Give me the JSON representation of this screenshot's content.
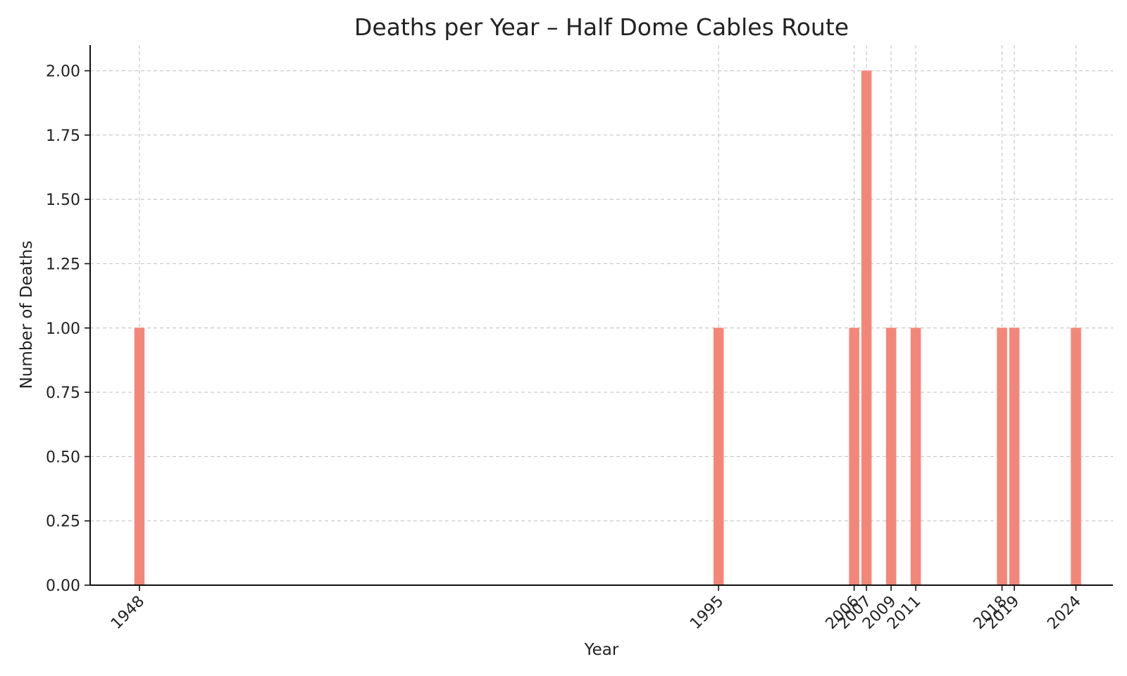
{
  "chart_data": {
    "type": "bar",
    "title": "Deaths per Year – Half Dome Cables Route",
    "xlabel": "Year",
    "ylabel": "Number of Deaths",
    "x": [
      1948,
      1995,
      2006,
      2007,
      2009,
      2011,
      2018,
      2019,
      2024
    ],
    "x_tick_labels": [
      "1948",
      "1995",
      "2006",
      "2007",
      "2009",
      "2011",
      "2018",
      "2019",
      "2024"
    ],
    "values": [
      1,
      1,
      1,
      2,
      1,
      1,
      1,
      1,
      1
    ],
    "xlim": [
      1944,
      2027
    ],
    "ylim": [
      0,
      2.1
    ],
    "y_ticks": [
      0,
      0.25,
      0.5,
      0.75,
      1.0,
      1.25,
      1.5,
      1.75,
      2.0
    ],
    "y_tick_labels": [
      "0.00",
      "0.25",
      "0.50",
      "0.75",
      "1.00",
      "1.25",
      "1.50",
      "1.75",
      "2.00"
    ],
    "grid": true,
    "bar_color": "#f28779"
  }
}
